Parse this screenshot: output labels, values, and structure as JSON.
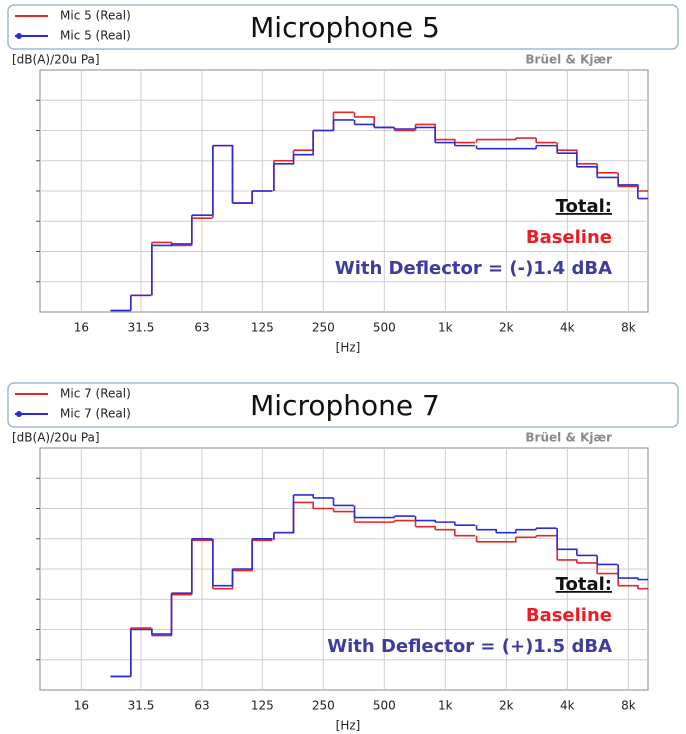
{
  "chart_data": [
    {
      "type": "step",
      "title": "Microphone 5",
      "y_label": "[dB(A)/20u Pa]",
      "x_label": "[Hz]",
      "brand": "Brüel & Kjær",
      "total_label": "Total:",
      "baseline_label": "Baseline",
      "deflector_label": "With Deflector = (-)1.4 dBA",
      "x": [
        25,
        31.5,
        40,
        50,
        63,
        80,
        100,
        125,
        160,
        200,
        250,
        315,
        400,
        500,
        630,
        800,
        1000,
        1250,
        1600,
        2000,
        2500,
        3150,
        4000,
        5000,
        6300,
        8000,
        10000
      ],
      "series": [
        {
          "name": "Mic 5 (Real)",
          "color": "#e3262b",
          "values": [
            0.05,
            0.55,
            2.3,
            2.2,
            3.1,
            5.5,
            3.6,
            4.0,
            5.0,
            5.35,
            6.0,
            6.6,
            6.45,
            6.1,
            6.0,
            6.2,
            5.7,
            5.6,
            5.7,
            5.7,
            5.75,
            5.6,
            5.35,
            4.9,
            4.6,
            4.15,
            4.0
          ]
        },
        {
          "name": "Mic 5 (Real)",
          "color": "#2b2bd8",
          "values": [
            0.05,
            0.55,
            2.2,
            2.25,
            3.2,
            5.5,
            3.6,
            4.0,
            4.9,
            5.2,
            6.0,
            6.35,
            6.2,
            6.1,
            6.05,
            6.1,
            5.6,
            5.5,
            5.4,
            5.4,
            5.4,
            5.5,
            5.25,
            4.8,
            4.45,
            4.2,
            3.75
          ]
        }
      ],
      "xlim": [
        10,
        10000
      ],
      "log_x": true,
      "ylim": [
        0,
        8
      ],
      "yticks": [
        1,
        2,
        3,
        4,
        5,
        6,
        7
      ],
      "grid": true,
      "xticks": [
        16,
        31.5,
        63,
        125,
        250,
        500,
        {
          "value": 1000,
          "label": "1k"
        },
        {
          "value": 2000,
          "label": "2k"
        },
        {
          "value": 4000,
          "label": "4k"
        },
        {
          "value": 8000,
          "label": "8k"
        }
      ]
    },
    {
      "type": "step",
      "title": "Microphone 7",
      "y_label": "[dB(A)/20u Pa]",
      "x_label": "[Hz]",
      "brand": "Brüel & Kjær",
      "total_label": "Total:",
      "baseline_label": "Baseline",
      "deflector_label": "With Deflector = (+)1.5 dBA",
      "x": [
        25,
        31.5,
        40,
        50,
        63,
        80,
        100,
        125,
        160,
        200,
        250,
        315,
        400,
        500,
        630,
        800,
        1000,
        1250,
        1600,
        2000,
        2500,
        3150,
        4000,
        5000,
        6300,
        8000,
        10000
      ],
      "series": [
        {
          "name": "Mic 7 (Real)",
          "color": "#e3262b",
          "values": [
            0.45,
            2.05,
            1.8,
            3.15,
            4.95,
            3.35,
            3.95,
            4.95,
            5.2,
            6.2,
            6.0,
            5.9,
            5.55,
            5.55,
            5.6,
            5.4,
            5.3,
            5.1,
            4.9,
            4.9,
            5.05,
            5.1,
            4.3,
            4.2,
            3.85,
            3.45,
            3.35
          ]
        },
        {
          "name": "Mic 7 (Real)",
          "color": "#2b2bd8",
          "values": [
            0.45,
            2.0,
            1.85,
            3.2,
            5.0,
            3.45,
            4.0,
            5.0,
            5.2,
            6.45,
            6.35,
            6.1,
            5.7,
            5.7,
            5.75,
            5.6,
            5.55,
            5.45,
            5.3,
            5.2,
            5.3,
            5.35,
            4.65,
            4.45,
            4.15,
            3.7,
            3.65
          ]
        }
      ],
      "xlim": [
        10,
        10000
      ],
      "log_x": true,
      "ylim": [
        0,
        8
      ],
      "yticks": [
        1,
        2,
        3,
        4,
        5,
        6,
        7
      ],
      "grid": true,
      "xticks": [
        16,
        31.5,
        63,
        125,
        250,
        500,
        {
          "value": 1000,
          "label": "1k"
        },
        {
          "value": 2000,
          "label": "2k"
        },
        {
          "value": 4000,
          "label": "4k"
        },
        {
          "value": 8000,
          "label": "8k"
        }
      ]
    }
  ]
}
